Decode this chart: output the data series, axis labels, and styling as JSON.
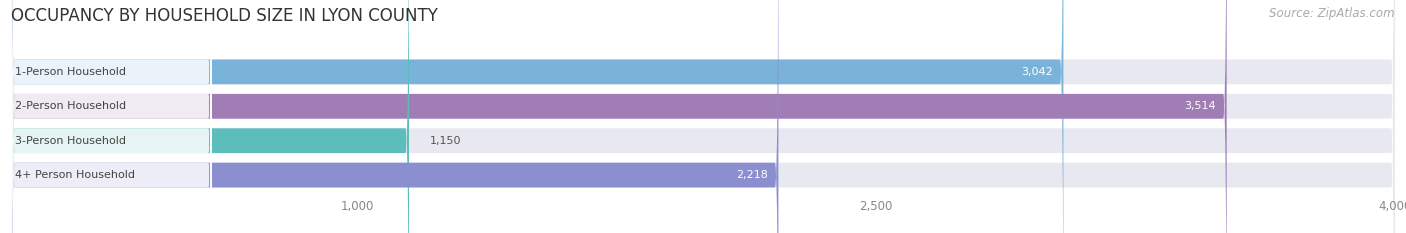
{
  "title": "OCCUPANCY BY HOUSEHOLD SIZE IN LYON COUNTY",
  "source": "Source: ZipAtlas.com",
  "categories": [
    "1-Person Household",
    "2-Person Household",
    "3-Person Household",
    "4+ Person Household"
  ],
  "values": [
    3042,
    3514,
    1150,
    2218
  ],
  "bar_colors": [
    "#7ab3d9",
    "#a07db5",
    "#5dbdba",
    "#8b8fcf"
  ],
  "xlim": [
    0,
    4000
  ],
  "xticks": [
    1000,
    2500,
    4000
  ],
  "background_color": "#ffffff",
  "bar_bg_color": "#e8e8f0",
  "title_fontsize": 12,
  "source_fontsize": 8.5,
  "label_fontsize": 8,
  "value_fontsize": 8,
  "bar_height": 0.72,
  "fig_width": 14.06,
  "fig_height": 2.33
}
